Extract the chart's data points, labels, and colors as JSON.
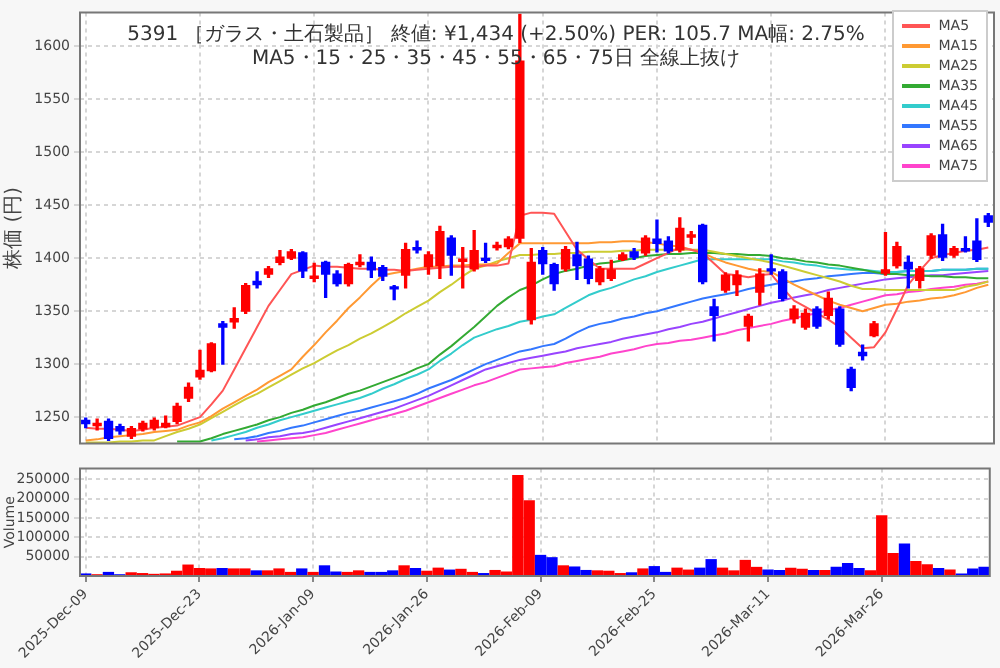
{
  "chart_data": [
    {
      "type": "candlestick",
      "title": "5391 ［ガラス・土石製品］ 終値: ¥1,434 (+2.50%)  PER: 105.7  MA幅: 2.75%",
      "subtitle": "MA5・15・25・35・45・55・65・75日 全線上抜け",
      "ylabel": "株価 (円)",
      "categories": [
        null,
        null,
        null,
        null,
        null,
        null,
        null,
        null,
        null,
        null,
        null,
        null,
        null,
        null,
        null,
        null,
        null,
        null,
        null,
        null,
        null,
        null,
        null,
        null,
        null,
        null,
        null,
        null,
        null,
        null,
        null,
        null,
        null,
        null,
        null,
        null,
        null,
        null,
        null,
        null,
        null,
        null,
        null,
        null,
        null,
        null,
        null,
        null,
        null,
        null,
        null,
        null,
        null,
        null,
        null,
        null,
        null,
        null,
        null,
        null,
        null,
        null,
        null,
        null,
        null,
        null,
        null,
        null,
        null,
        null,
        null,
        null,
        null,
        null,
        null,
        null,
        null,
        null,
        null,
        null
      ],
      "ohlc": [
        [
          1247,
          1249,
          1240,
          1244
        ],
        [
          1242,
          1248,
          1238,
          1244
        ],
        [
          1246,
          1248,
          1228,
          1230
        ],
        [
          1241,
          1243,
          1234,
          1237
        ],
        [
          1232,
          1241,
          1230,
          1239
        ],
        [
          1239,
          1246,
          1237,
          1244
        ],
        [
          1240,
          1249,
          1238,
          1247
        ],
        [
          1241,
          1251,
          1240,
          1244
        ],
        [
          1246,
          1263,
          1244,
          1260
        ],
        [
          1268,
          1282,
          1265,
          1278
        ],
        [
          1288,
          1313,
          1286,
          1294
        ],
        [
          1294,
          1320,
          1293,
          1319
        ],
        [
          1338,
          1340,
          1300,
          1335
        ],
        [
          1340,
          1353,
          1334,
          1343
        ],
        [
          1350,
          1376,
          1348,
          1374
        ],
        [
          1378,
          1387,
          1372,
          1375
        ],
        [
          1385,
          1392,
          1382,
          1390
        ],
        [
          1396,
          1407,
          1394,
          1401
        ],
        [
          1400,
          1408,
          1399,
          1406
        ],
        [
          1405,
          1406,
          1382,
          1388
        ],
        [
          1381,
          1395,
          1378,
          1383
        ],
        [
          1396,
          1397,
          1363,
          1385
        ],
        [
          1385,
          1388,
          1374,
          1376
        ],
        [
          1376,
          1395,
          1374,
          1394
        ],
        [
          1394,
          1403,
          1392,
          1396
        ],
        [
          1396,
          1401,
          1382,
          1389
        ],
        [
          1391,
          1393,
          1379,
          1383
        ],
        [
          1373,
          1374,
          1361,
          1371
        ],
        [
          1384,
          1414,
          1372,
          1408
        ],
        [
          1410,
          1416,
          1405,
          1408
        ],
        [
          1392,
          1406,
          1385,
          1403
        ],
        [
          1393,
          1430,
          1381,
          1425
        ],
        [
          1419,
          1421,
          1384,
          1403
        ],
        [
          1397,
          1410,
          1372,
          1399
        ],
        [
          1390,
          1426,
          1388,
          1407
        ],
        [
          1399,
          1414,
          1396,
          1398
        ],
        [
          1410,
          1415,
          1408,
          1412
        ],
        [
          1411,
          1420,
          1409,
          1418
        ],
        [
          1419,
          1630,
          1415,
          1586
        ],
        [
          1342,
          1409,
          1338,
          1396
        ],
        [
          1407,
          1410,
          1385,
          1395
        ],
        [
          1394,
          1395,
          1370,
          1376
        ],
        [
          1390,
          1411,
          1388,
          1408
        ],
        [
          1403,
          1415,
          1380,
          1393
        ],
        [
          1399,
          1402,
          1376,
          1381
        ],
        [
          1378,
          1392,
          1375,
          1390
        ],
        [
          1381,
          1398,
          1379,
          1389
        ],
        [
          1399,
          1405,
          1398,
          1403
        ],
        [
          1406,
          1409,
          1399,
          1401
        ],
        [
          1405,
          1421,
          1403,
          1419
        ],
        [
          1418,
          1436,
          1406,
          1414
        ],
        [
          1416,
          1420,
          1405,
          1407
        ],
        [
          1408,
          1438,
          1406,
          1428
        ],
        [
          1420,
          1425,
          1414,
          1422
        ],
        [
          1431,
          1432,
          1376,
          1378
        ],
        [
          1354,
          1361,
          1322,
          1346
        ],
        [
          1370,
          1386,
          1368,
          1384
        ],
        [
          1375,
          1388,
          1365,
          1384
        ],
        [
          1336,
          1347,
          1322,
          1345
        ],
        [
          1368,
          1390,
          1356,
          1385
        ],
        [
          1390,
          1403,
          1385,
          1388
        ],
        [
          1387,
          1389,
          1360,
          1362
        ],
        [
          1343,
          1355,
          1339,
          1352
        ],
        [
          1335,
          1352,
          1333,
          1348
        ],
        [
          1352,
          1354,
          1334,
          1336
        ],
        [
          1346,
          1368,
          1343,
          1362
        ],
        [
          1352,
          1354,
          1317,
          1319
        ],
        [
          1295,
          1297,
          1275,
          1278
        ],
        [
          1311,
          1318,
          1304,
          1308
        ],
        [
          1327,
          1340,
          1326,
          1338
        ],
        [
          1386,
          1424,
          1384,
          1389
        ],
        [
          1393,
          1415,
          1391,
          1411
        ],
        [
          1396,
          1402,
          1372,
          1390
        ],
        [
          1379,
          1392,
          1372,
          1390
        ],
        [
          1403,
          1423,
          1400,
          1421
        ],
        [
          1422,
          1432,
          1398,
          1401
        ],
        [
          1403,
          1411,
          1401,
          1409
        ],
        [
          1409,
          1420,
          1406,
          1407
        ],
        [
          1416,
          1437,
          1397,
          1399
        ],
        [
          1440,
          1442,
          1430,
          1434
        ]
      ],
      "colors": [
        "#0000ff",
        "#ff0000",
        "#0000ff",
        "#0000ff",
        "#ff0000",
        "#ff0000",
        "#ff0000",
        "#ff0000",
        "#ff0000",
        "#ff0000",
        "#ff0000",
        "#ff0000",
        "#0000ff",
        "#ff0000",
        "#ff0000",
        "#0000ff",
        "#ff0000",
        "#ff0000",
        "#ff0000",
        "#0000ff",
        "#ff0000",
        "#0000ff",
        "#0000ff",
        "#ff0000",
        "#ff0000",
        "#0000ff",
        "#0000ff",
        "#0000ff",
        "#ff0000",
        "#0000ff",
        "#ff0000",
        "#ff0000",
        "#0000ff",
        "#ff0000",
        "#ff0000",
        "#0000ff",
        "#ff0000",
        "#ff0000",
        "#ff0000",
        "#ff0000",
        "#0000ff",
        "#0000ff",
        "#ff0000",
        "#0000ff",
        "#0000ff",
        "#ff0000",
        "#ff0000",
        "#ff0000",
        "#0000ff",
        "#ff0000",
        "#0000ff",
        "#0000ff",
        "#ff0000",
        "#ff0000",
        "#0000ff",
        "#0000ff",
        "#ff0000",
        "#ff0000",
        "#ff0000",
        "#ff0000",
        "#0000ff",
        "#0000ff",
        "#ff0000",
        "#ff0000",
        "#0000ff",
        "#ff0000",
        "#0000ff",
        "#0000ff",
        "#0000ff",
        "#ff0000",
        "#ff0000",
        "#ff0000",
        "#0000ff",
        "#ff0000",
        "#ff0000",
        "#0000ff",
        "#ff0000",
        "#0000ff",
        "#0000ff",
        "#0000ff"
      ],
      "series": [
        {
          "name": "MA5",
          "type": "line",
          "color": "#ff5555",
          "values": [
            1240,
            1239,
            1239,
            1238,
            1237,
            1238,
            1240,
            1241,
            1242,
            1246,
            1250,
            1262,
            1275,
            1295,
            1315,
            1335,
            1355,
            1370,
            1385,
            1389,
            1393,
            1392,
            1392,
            1391,
            1390,
            1390,
            1389,
            1389,
            1388,
            1389,
            1390,
            1391,
            1392,
            1392,
            1392,
            1393,
            1393,
            1395,
            1440,
            1443,
            1443,
            1442,
            1425,
            1408,
            1399,
            1390,
            1390,
            1390,
            1390,
            1395,
            1400,
            1405,
            1410,
            1408,
            1405,
            1395,
            1385,
            1384,
            1382,
            1384,
            1385,
            1372,
            1360,
            1354,
            1348,
            1342,
            1335,
            1325,
            1315,
            1316,
            1330,
            1352,
            1375,
            1388,
            1400,
            1403,
            1405,
            1407,
            1408,
            1410
          ]
        },
        {
          "name": "MA15",
          "type": "line",
          "color": "#ff9933",
          "values": [
            1228,
            1229,
            1231,
            1232,
            1233,
            1234,
            1236,
            1237,
            1238,
            1242,
            1245,
            1251,
            1258,
            1264,
            1270,
            1276,
            1283,
            1289,
            1295,
            1307,
            1318,
            1330,
            1341,
            1353,
            1363,
            1374,
            1384,
            1386,
            1388,
            1390,
            1392,
            1392,
            1393,
            1393,
            1394,
            1394,
            1395,
            1405,
            1414,
            1414,
            1414,
            1414,
            1414,
            1414,
            1414,
            1415,
            1415,
            1416,
            1416,
            1415,
            1414,
            1412,
            1411,
            1408,
            1405,
            1400,
            1396,
            1393,
            1390,
            1388,
            1387,
            1381,
            1375,
            1370,
            1365,
            1360,
            1356,
            1353,
            1350,
            1353,
            1356,
            1357,
            1359,
            1360,
            1362,
            1363,
            1365,
            1368,
            1372,
            1375
          ]
        },
        {
          "name": "MA25",
          "type": "line",
          "color": "#cccc33",
          "values": [
            1226,
            1226,
            1226,
            1227,
            1227,
            1228,
            1228,
            1232,
            1236,
            1239,
            1243,
            1249,
            1255,
            1261,
            1267,
            1272,
            1278,
            1284,
            1290,
            1296,
            1301,
            1307,
            1313,
            1318,
            1324,
            1329,
            1335,
            1341,
            1348,
            1354,
            1360,
            1368,
            1375,
            1383,
            1390,
            1393,
            1397,
            1400,
            1403,
            1403,
            1404,
            1404,
            1405,
            1405,
            1406,
            1406,
            1406,
            1407,
            1407,
            1408,
            1408,
            1408,
            1408,
            1408,
            1408,
            1406,
            1404,
            1402,
            1400,
            1398,
            1396,
            1393,
            1390,
            1387,
            1384,
            1381,
            1378,
            1374,
            1371,
            1371,
            1370,
            1370,
            1370,
            1370,
            1370,
            1370,
            1370,
            1373,
            1375,
            1378
          ]
        },
        {
          "name": "MA35",
          "type": "line",
          "color": "#33aa33",
          "values": [
            null,
            null,
            null,
            null,
            null,
            null,
            null,
            null,
            1227,
            1227,
            1227,
            1230,
            1234,
            1237,
            1240,
            1243,
            1247,
            1250,
            1254,
            1257,
            1261,
            1264,
            1268,
            1272,
            1275,
            1279,
            1283,
            1287,
            1291,
            1296,
            1300,
            1309,
            1317,
            1326,
            1335,
            1345,
            1355,
            1363,
            1370,
            1374,
            1380,
            1385,
            1388,
            1390,
            1393,
            1395,
            1396,
            1398,
            1400,
            1402,
            1403,
            1404,
            1404,
            1405,
            1405,
            1405,
            1404,
            1404,
            1403,
            1403,
            1402,
            1400,
            1399,
            1397,
            1396,
            1394,
            1393,
            1391,
            1389,
            1387,
            1385,
            1385,
            1384,
            1384,
            1383,
            1383,
            1382,
            1382,
            1381,
            1381
          ]
        },
        {
          "name": "MA45",
          "type": "line",
          "color": "#33cccc",
          "values": [
            null,
            null,
            null,
            null,
            null,
            null,
            null,
            null,
            null,
            null,
            null,
            1228,
            1230,
            1233,
            1236,
            1240,
            1243,
            1247,
            1250,
            1253,
            1256,
            1259,
            1262,
            1265,
            1268,
            1272,
            1277,
            1281,
            1286,
            1290,
            1295,
            1303,
            1310,
            1318,
            1325,
            1329,
            1333,
            1336,
            1340,
            1342,
            1345,
            1347,
            1353,
            1359,
            1365,
            1369,
            1372,
            1376,
            1380,
            1383,
            1387,
            1390,
            1393,
            1396,
            1399,
            1399,
            1399,
            1399,
            1399,
            1399,
            1399,
            1397,
            1396,
            1394,
            1393,
            1391,
            1390,
            1389,
            1389,
            1388,
            1387,
            1387,
            1388,
            1388,
            1388,
            1389,
            1389,
            1389,
            1390,
            1390
          ]
        },
        {
          "name": "MA55",
          "type": "line",
          "color": "#3377ff",
          "values": [
            null,
            null,
            null,
            null,
            null,
            null,
            null,
            null,
            null,
            null,
            null,
            null,
            null,
            1229,
            1230,
            1232,
            1235,
            1237,
            1240,
            1242,
            1245,
            1248,
            1251,
            1254,
            1256,
            1259,
            1262,
            1265,
            1268,
            1272,
            1277,
            1281,
            1285,
            1290,
            1295,
            1300,
            1304,
            1308,
            1312,
            1314,
            1317,
            1319,
            1324,
            1330,
            1335,
            1338,
            1340,
            1343,
            1345,
            1348,
            1350,
            1353,
            1356,
            1359,
            1362,
            1364,
            1366,
            1368,
            1371,
            1373,
            1375,
            1377,
            1378,
            1380,
            1381,
            1383,
            1384,
            1385,
            1386,
            1386,
            1385,
            1387,
            1388,
            1388,
            1388,
            1389,
            1389,
            1389,
            1390,
            1390
          ]
        },
        {
          "name": "MA65",
          "type": "line",
          "color": "#9944ff",
          "values": [
            null,
            null,
            null,
            null,
            null,
            null,
            null,
            null,
            null,
            null,
            null,
            null,
            null,
            null,
            1228,
            1229,
            1231,
            1232,
            1234,
            1235,
            1237,
            1240,
            1243,
            1246,
            1249,
            1252,
            1255,
            1258,
            1262,
            1266,
            1270,
            1275,
            1280,
            1285,
            1290,
            1295,
            1298,
            1301,
            1304,
            1306,
            1308,
            1310,
            1312,
            1315,
            1317,
            1319,
            1321,
            1324,
            1326,
            1328,
            1330,
            1333,
            1335,
            1338,
            1340,
            1343,
            1346,
            1349,
            1352,
            1355,
            1358,
            1360,
            1363,
            1365,
            1367,
            1370,
            1372,
            1374,
            1376,
            1378,
            1380,
            1381,
            1382,
            1383,
            1384,
            1384,
            1385,
            1386,
            1387,
            1388
          ]
        },
        {
          "name": "MA75",
          "type": "line",
          "color": "#ff44cc",
          "values": [
            null,
            null,
            null,
            null,
            null,
            null,
            null,
            null,
            null,
            null,
            null,
            null,
            null,
            null,
            null,
            1227,
            1228,
            1229,
            1230,
            1231,
            1233,
            1235,
            1238,
            1241,
            1244,
            1247,
            1250,
            1253,
            1256,
            1260,
            1264,
            1268,
            1272,
            1276,
            1280,
            1283,
            1287,
            1291,
            1295,
            1296,
            1297,
            1298,
            1301,
            1303,
            1305,
            1307,
            1310,
            1312,
            1314,
            1317,
            1319,
            1320,
            1322,
            1323,
            1325,
            1327,
            1329,
            1332,
            1334,
            1336,
            1338,
            1341,
            1343,
            1346,
            1348,
            1351,
            1353,
            1356,
            1359,
            1362,
            1365,
            1366,
            1368,
            1369,
            1371,
            1372,
            1373,
            1375,
            1376,
            1378
          ]
        }
      ],
      "ylim": [
        1225,
        1632
      ],
      "yticks": [
        1250,
        1300,
        1350,
        1400,
        1450,
        1500,
        1550,
        1600
      ],
      "grid": true,
      "legend": "top right",
      "tick_labels": "y"
    },
    {
      "type": "bar",
      "ylabel": "Volume",
      "categories": [
        "2025-Dec-09",
        null,
        null,
        null,
        null,
        null,
        null,
        null,
        null,
        null,
        "2025-Dec-23",
        null,
        null,
        null,
        null,
        null,
        null,
        null,
        null,
        null,
        "2026-Jan-09",
        null,
        null,
        null,
        null,
        null,
        null,
        null,
        null,
        null,
        "2026-Jan-26",
        null,
        null,
        null,
        null,
        null,
        null,
        null,
        null,
        null,
        "2026-Feb-09",
        null,
        null,
        null,
        null,
        null,
        null,
        null,
        null,
        null,
        "2026-Feb-25",
        null,
        null,
        null,
        null,
        null,
        null,
        null,
        null,
        null,
        "2026-Mar-11",
        null,
        null,
        null,
        null,
        null,
        null,
        null,
        null,
        null,
        "2026-Mar-26",
        null,
        null,
        null,
        null,
        null,
        null,
        null,
        null,
        null
      ],
      "values": [
        5000,
        3000,
        9000,
        3000,
        8000,
        6000,
        4000,
        5000,
        12000,
        28000,
        19000,
        18000,
        19000,
        18000,
        18000,
        13000,
        13000,
        18000,
        9000,
        18000,
        9000,
        26000,
        10000,
        9000,
        13000,
        9000,
        9000,
        13000,
        26000,
        19000,
        12000,
        20000,
        15000,
        17000,
        9000,
        6000,
        14000,
        10000,
        259000,
        194000,
        53000,
        47000,
        26000,
        23000,
        14000,
        13000,
        12000,
        6000,
        8000,
        18000,
        24000,
        9000,
        20000,
        15000,
        20000,
        42000,
        20000,
        13000,
        40000,
        22000,
        15000,
        14000,
        20000,
        17000,
        14000,
        14000,
        22000,
        32000,
        19000,
        13000,
        155000,
        58000,
        82000,
        37000,
        29000,
        19000,
        15000,
        5000,
        18000,
        22000
      ],
      "colors": [
        "#0000ff",
        "#ff0000",
        "#0000ff",
        "#0000ff",
        "#ff0000",
        "#ff0000",
        "#ff0000",
        "#ff0000",
        "#ff0000",
        "#ff0000",
        "#ff0000",
        "#ff0000",
        "#0000ff",
        "#ff0000",
        "#ff0000",
        "#0000ff",
        "#ff0000",
        "#ff0000",
        "#ff0000",
        "#0000ff",
        "#ff0000",
        "#0000ff",
        "#0000ff",
        "#ff0000",
        "#ff0000",
        "#0000ff",
        "#0000ff",
        "#0000ff",
        "#ff0000",
        "#0000ff",
        "#ff0000",
        "#ff0000",
        "#0000ff",
        "#ff0000",
        "#ff0000",
        "#0000ff",
        "#ff0000",
        "#ff0000",
        "#ff0000",
        "#ff0000",
        "#0000ff",
        "#0000ff",
        "#ff0000",
        "#0000ff",
        "#0000ff",
        "#ff0000",
        "#ff0000",
        "#ff0000",
        "#0000ff",
        "#ff0000",
        "#0000ff",
        "#0000ff",
        "#ff0000",
        "#ff0000",
        "#0000ff",
        "#0000ff",
        "#ff0000",
        "#ff0000",
        "#ff0000",
        "#ff0000",
        "#0000ff",
        "#0000ff",
        "#ff0000",
        "#ff0000",
        "#0000ff",
        "#ff0000",
        "#0000ff",
        "#0000ff",
        "#0000ff",
        "#ff0000",
        "#ff0000",
        "#ff0000",
        "#0000ff",
        "#ff0000",
        "#ff0000",
        "#0000ff",
        "#ff0000",
        "#0000ff",
        "#0000ff",
        "#0000ff"
      ],
      "ylim": [
        0,
        278000
      ],
      "yticks": [
        50000,
        100000,
        150000,
        200000,
        250000
      ],
      "grid": true
    }
  ]
}
